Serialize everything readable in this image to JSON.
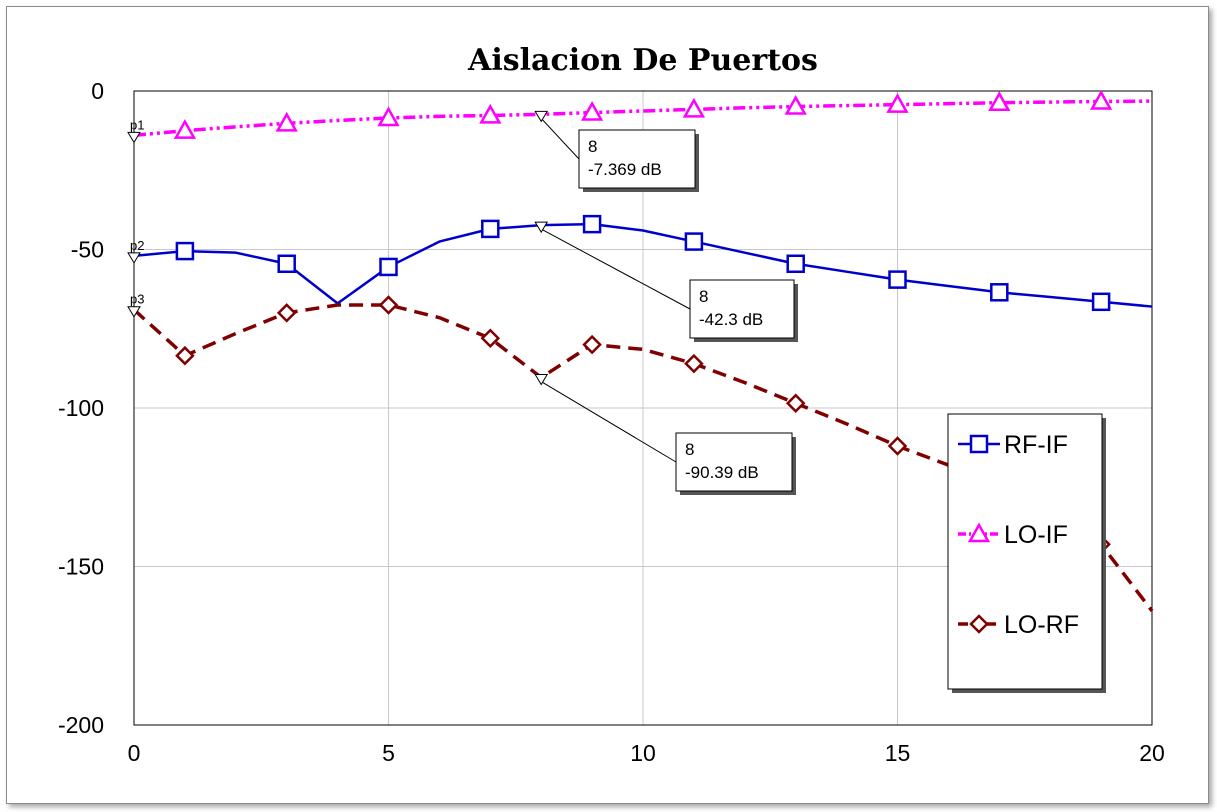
{
  "chart_data": {
    "type": "line",
    "title": "Aislacion De Puertos",
    "xlabel": "",
    "ylabel": "",
    "xlim": [
      0,
      20
    ],
    "ylim": [
      -200,
      0
    ],
    "xticks": [
      0,
      5,
      10,
      15,
      20
    ],
    "yticks": [
      0,
      -50,
      -100,
      -150,
      -200
    ],
    "grid": true,
    "legend_position": "bottom-right",
    "series": [
      {
        "name": "RF-IF",
        "color": "#0000cc",
        "line_style": "solid",
        "marker": "square",
        "x": [
          0,
          1,
          2,
          3,
          4,
          5,
          6,
          7,
          8,
          9,
          10,
          11,
          12,
          13,
          14,
          15,
          16,
          17,
          18,
          19,
          20
        ],
        "y": [
          -52,
          -50.5,
          -51,
          -54.5,
          -67,
          -55.5,
          -47.5,
          -43.5,
          -42.3,
          -42,
          -44,
          -47.5,
          -51,
          -54.5,
          -57,
          -59.5,
          -61.5,
          -63.5,
          -65,
          -66.5,
          -68
        ],
        "marker_x": [
          1,
          3,
          5,
          7,
          9,
          11,
          13,
          15,
          17,
          19
        ]
      },
      {
        "name": "LO-IF",
        "color": "#ff00ff",
        "line_style": "dash-dot-dot",
        "marker": "triangle",
        "x": [
          0,
          1,
          2,
          3,
          4,
          5,
          6,
          7,
          8,
          9,
          10,
          11,
          12,
          13,
          14,
          15,
          16,
          17,
          18,
          19,
          20
        ],
        "y": [
          -14,
          -12.5,
          -11.3,
          -10.2,
          -9.3,
          -8.5,
          -8,
          -7.7,
          -7.369,
          -6.8,
          -6.3,
          -5.8,
          -5.3,
          -4.9,
          -4.6,
          -4.3,
          -4,
          -3.7,
          -3.5,
          -3.3,
          -3.2
        ],
        "marker_x": [
          1,
          3,
          5,
          7,
          9,
          11,
          13,
          15,
          17,
          19
        ]
      },
      {
        "name": "LO-RF",
        "color": "#800000",
        "line_style": "dashed",
        "marker": "diamond",
        "x": [
          0,
          1,
          2,
          3,
          4,
          5,
          6,
          7,
          8,
          9,
          10,
          11,
          12,
          13,
          14,
          15,
          16,
          17,
          18,
          19,
          20
        ],
        "y": [
          -69,
          -83.5,
          -76.5,
          -70,
          -67.5,
          -67.5,
          -71.5,
          -78,
          -90.39,
          -80,
          -81.5,
          -86,
          -92,
          -98.5,
          -105,
          -112,
          -118,
          -124,
          -133,
          -143,
          -164
        ],
        "marker_x": [
          1,
          3,
          5,
          7,
          9,
          11,
          13,
          15,
          17,
          19
        ]
      }
    ],
    "markers": [
      {
        "label": "p1",
        "series": 1,
        "x": 0
      },
      {
        "label": "p2",
        "series": 0,
        "x": 0
      },
      {
        "label": "p3",
        "series": 2,
        "x": 0
      }
    ],
    "annotations": [
      {
        "series": 1,
        "x": 8,
        "line1": "8",
        "line2": "-7.369 dB"
      },
      {
        "series": 0,
        "x": 8,
        "line1": "8",
        "line2": "-42.3 dB"
      },
      {
        "series": 2,
        "x": 8,
        "line1": "8",
        "line2": "-90.39 dB"
      }
    ]
  }
}
